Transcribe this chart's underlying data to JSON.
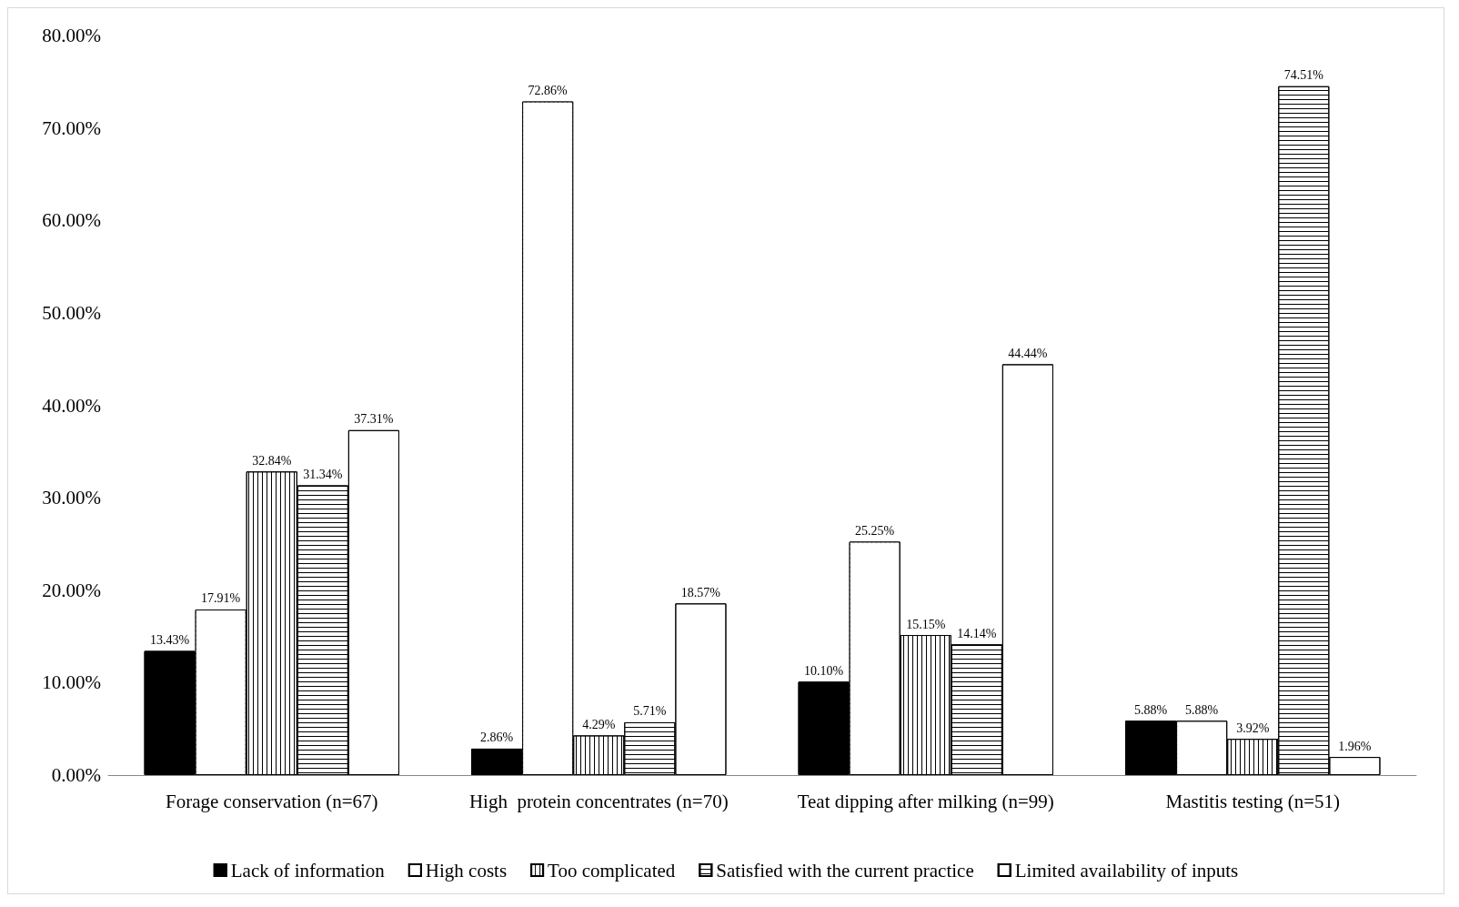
{
  "chart_data": {
    "type": "bar",
    "categories": [
      "Forage conservation (n=67)",
      "High  protein concentrates (n=70)",
      "Teat dipping after milking (n=99)",
      "Mastitis testing (n=51)"
    ],
    "series": [
      {
        "name": "Lack of information",
        "color": "#000000",
        "values": [
          13.43,
          2.86,
          10.1,
          5.88
        ],
        "value_labels": [
          "13.43%",
          "2.86%",
          "10.10%",
          "5.88%"
        ]
      },
      {
        "name": "High costs",
        "color": "#ffffff",
        "values": [
          17.91,
          72.86,
          25.25,
          5.88
        ],
        "value_labels": [
          "17.91%",
          "72.86%",
          "25.25%",
          "5.88%"
        ]
      },
      {
        "name": "Too complicated",
        "color": "#ffffff",
        "values": [
          32.84,
          4.29,
          15.15,
          3.92
        ],
        "value_labels": [
          "32.84%",
          "4.29%",
          "15.15%",
          "3.92%"
        ]
      },
      {
        "name": "Satisfied with the current practice",
        "color": "#ffffff",
        "values": [
          31.34,
          5.71,
          14.14,
          74.51
        ],
        "value_labels": [
          "31.34%",
          "5.71%",
          "14.14%",
          "74.51%"
        ]
      },
      {
        "name": "Limited availability of inputs",
        "color": "#ffffff",
        "values": [
          37.31,
          18.57,
          44.44,
          1.96
        ],
        "value_labels": [
          "37.31%",
          "18.57%",
          "44.44%",
          "1.96%"
        ]
      }
    ],
    "ylim": [
      0,
      80
    ],
    "yticks": [
      {
        "value": 0,
        "label": "0.00%"
      },
      {
        "value": 10,
        "label": "10.00%"
      },
      {
        "value": 20,
        "label": "20.00%"
      },
      {
        "value": 30,
        "label": "30.00%"
      },
      {
        "value": 40,
        "label": "40.00%"
      },
      {
        "value": 50,
        "label": "50.00%"
      },
      {
        "value": 60,
        "label": "60.00%"
      },
      {
        "value": 70,
        "label": "70.00%"
      },
      {
        "value": 80,
        "label": "80.00%"
      }
    ],
    "grid": false,
    "legend": "bottom"
  }
}
